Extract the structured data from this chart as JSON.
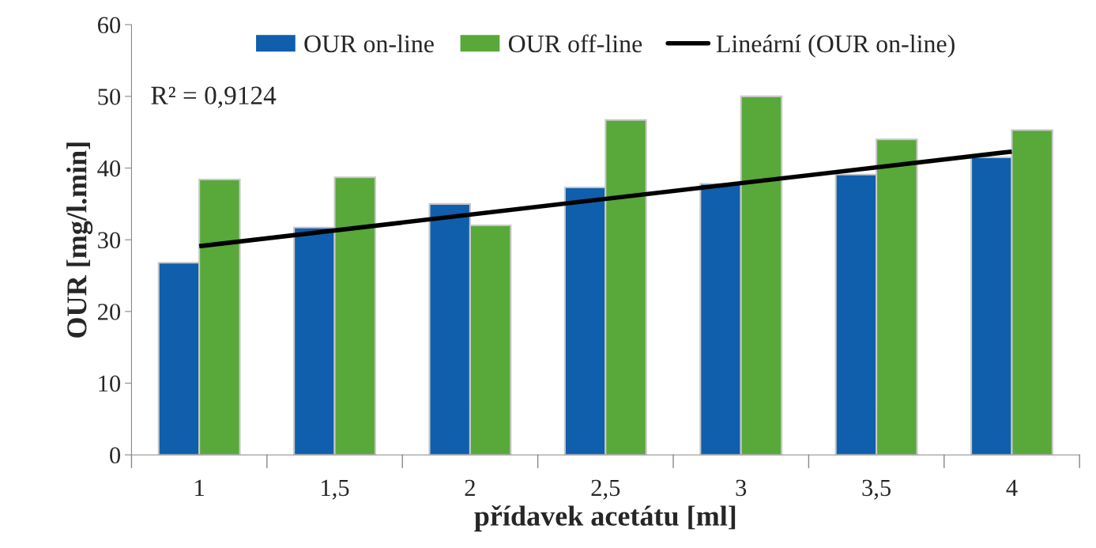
{
  "chart_data": {
    "type": "bar",
    "xlabel": "přídavek acetátu [ml]",
    "ylabel": "OUR [mg/l.min]",
    "categories": [
      "1",
      "1,5",
      "2",
      "2,5",
      "3",
      "3,5",
      "4"
    ],
    "series": [
      {
        "name": "OUR on-line",
        "color": "#0f5fad",
        "values": [
          26.8,
          31.7,
          35.0,
          37.3,
          37.8,
          39.1,
          41.5
        ]
      },
      {
        "name": "OUR off-line",
        "color": "#58a83a",
        "values": [
          38.4,
          38.7,
          32.0,
          46.7,
          50.0,
          44.0,
          45.3
        ]
      },
      {
        "name": "Lineární (OUR on-line)",
        "type": "line",
        "color": "#000000",
        "x": [
          "1",
          "4"
        ],
        "values": [
          29.1,
          42.3
        ]
      }
    ],
    "ylim": [
      0,
      60
    ],
    "yticks": [
      0,
      10,
      20,
      30,
      40,
      50,
      60
    ],
    "annotations": [
      "R² = 0,9124"
    ],
    "legend": "top",
    "grid": false
  }
}
